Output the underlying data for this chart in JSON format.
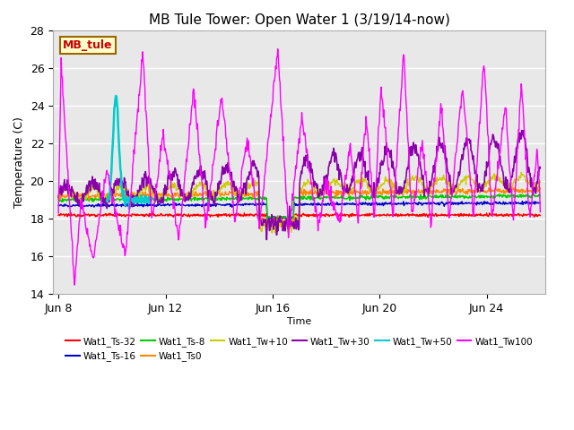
{
  "title": "MB Tule Tower: Open Water 1 (3/19/14-now)",
  "xlabel": "Time",
  "ylabel": "Temperature (C)",
  "ylim": [
    14,
    28
  ],
  "yticks": [
    14,
    16,
    18,
    20,
    22,
    24,
    26,
    28
  ],
  "fig_facecolor": "#ffffff",
  "plot_facecolor": "#e8e8e8",
  "grid_color": "#ffffff",
  "xtick_labels": [
    "Jun 8",
    "Jun 12",
    "Jun 16",
    "Jun 20",
    "Jun 24"
  ],
  "xtick_pos": [
    8,
    12,
    16,
    20,
    24
  ],
  "xlim": [
    7.8,
    26.2
  ],
  "series_colors": {
    "Wat1_Ts-32": "#ff0000",
    "Wat1_Ts-16": "#0000cc",
    "Wat1_Ts-8": "#00cc00",
    "Wat1_Ts0": "#ff8800",
    "Wat1_Tw+10": "#cccc00",
    "Wat1_Tw+30": "#8800aa",
    "Wat1_Tw+50": "#00cccc",
    "Wat1_Tw100": "#ff00ff"
  },
  "legend_order": [
    "Wat1_Ts-32",
    "Wat1_Ts-16",
    "Wat1_Ts-8",
    "Wat1_Ts0",
    "Wat1_Tw+10",
    "Wat1_Tw+30",
    "Wat1_Tw+50",
    "Wat1_Tw100"
  ],
  "mb_tule_box": {
    "text": "MB_tule",
    "facecolor": "#ffffcc",
    "edgecolor": "#996600",
    "textcolor": "#cc0000"
  }
}
